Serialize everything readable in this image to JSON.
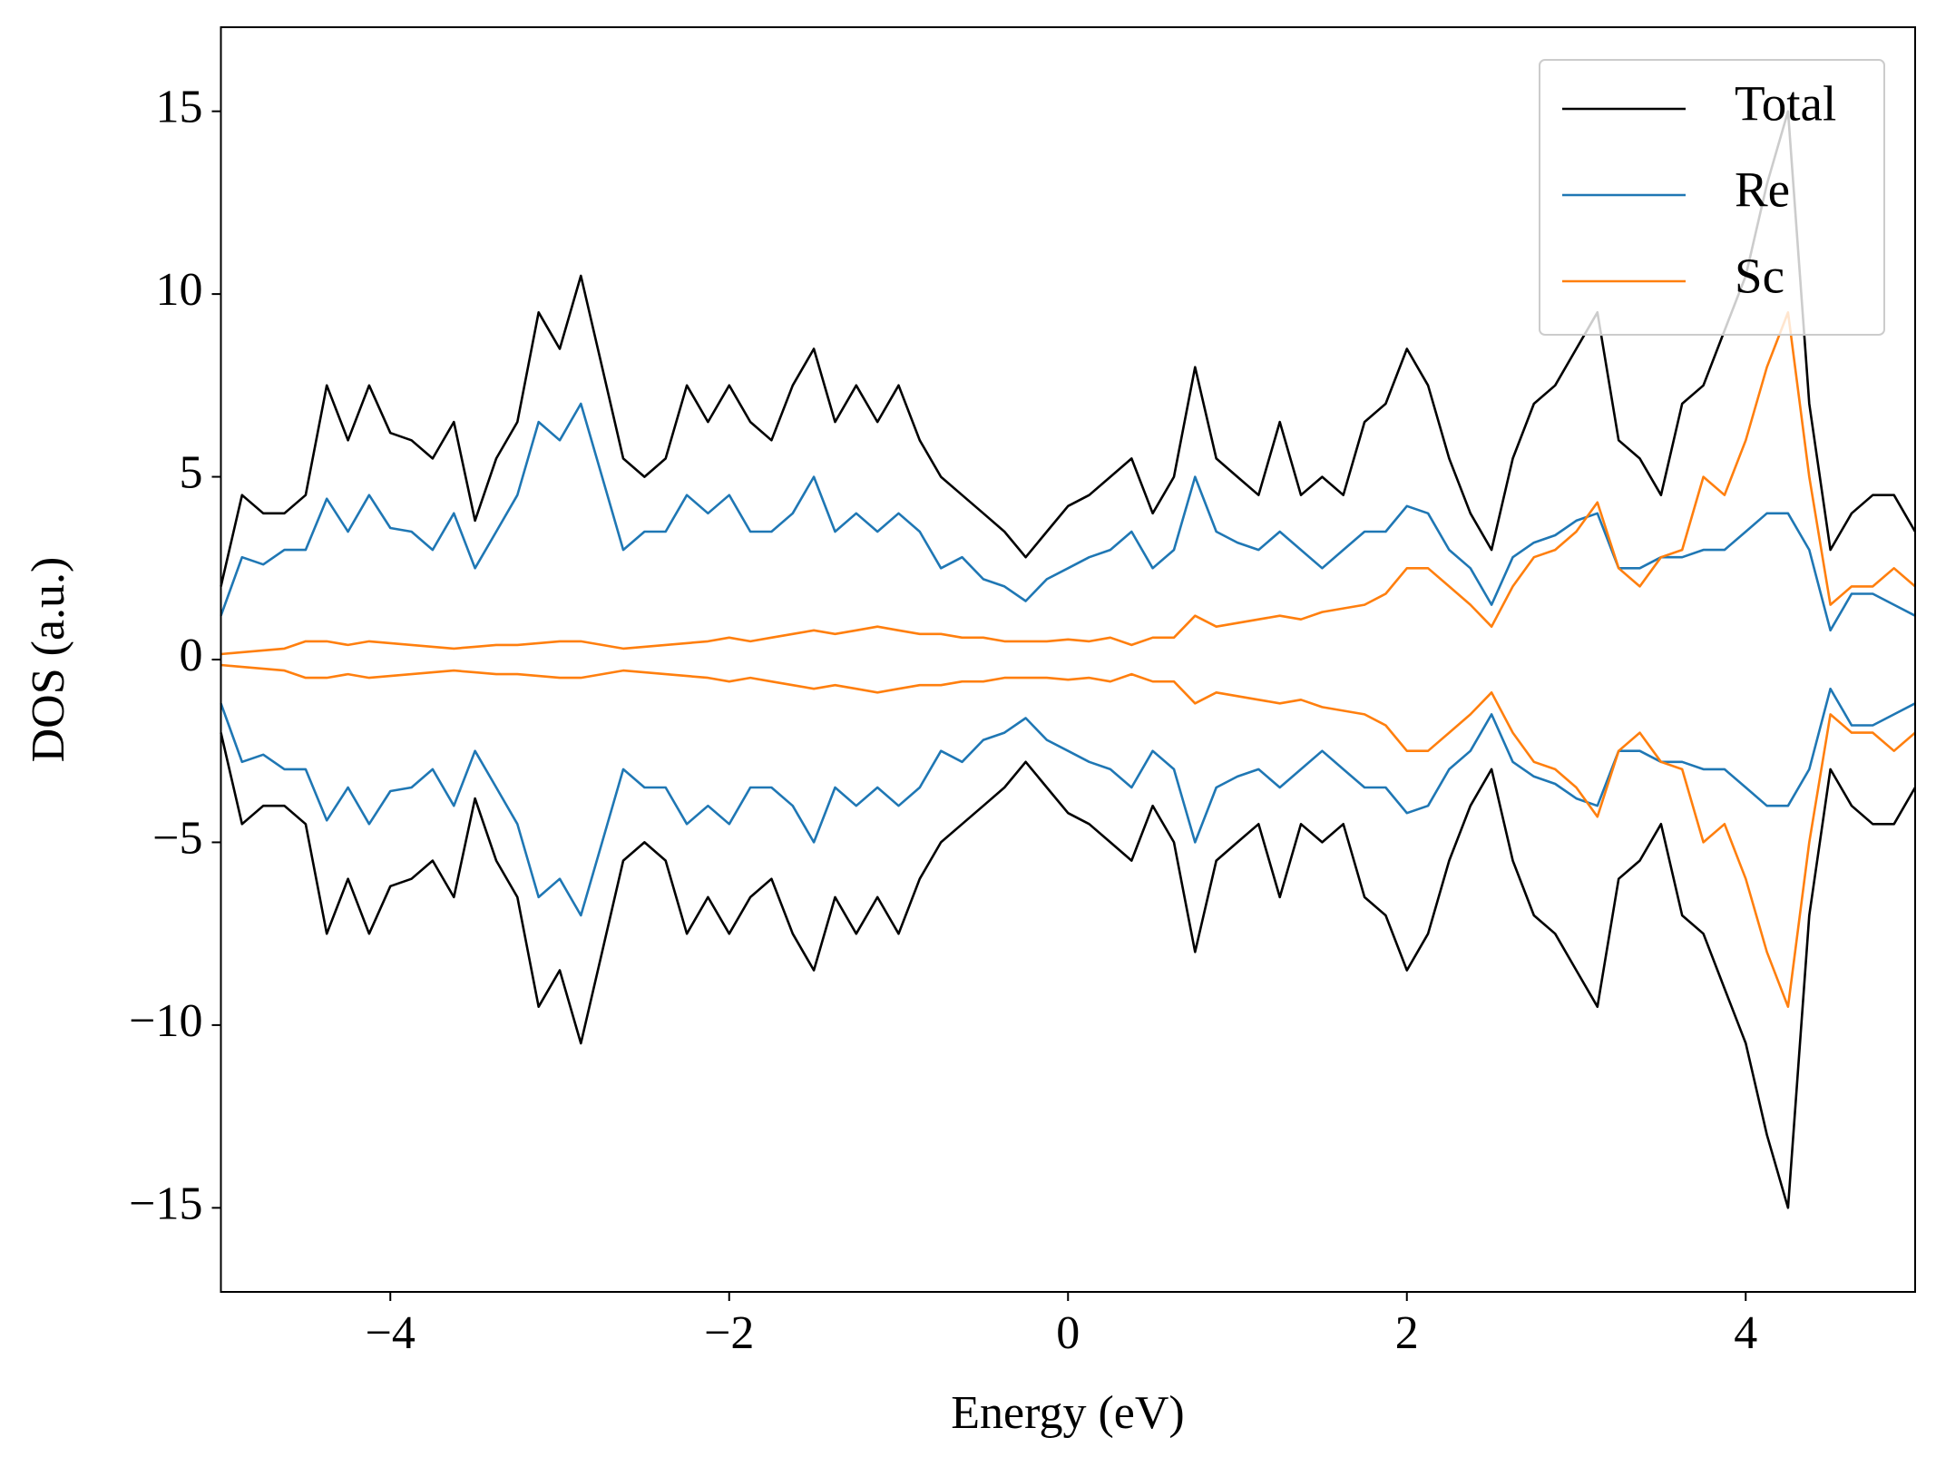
{
  "chart_data": {
    "type": "line",
    "xlabel": "Energy (eV)",
    "ylabel": "DOS (a.u.)",
    "x": [
      -5,
      -4.875,
      -4.75,
      -4.625,
      -4.5,
      -4.375,
      -4.25,
      -4.125,
      -4,
      -3.875,
      -3.75,
      -3.625,
      -3.5,
      -3.375,
      -3.25,
      -3.125,
      -3,
      -2.875,
      -2.75,
      -2.625,
      -2.5,
      -2.375,
      -2.25,
      -2.125,
      -2,
      -1.875,
      -1.75,
      -1.625,
      -1.5,
      -1.375,
      -1.25,
      -1.125,
      -1,
      -0.875,
      -0.75,
      -0.625,
      -0.5,
      -0.375,
      -0.25,
      -0.125,
      0,
      0.125,
      0.25,
      0.375,
      0.5,
      0.625,
      0.75,
      0.875,
      1,
      1.125,
      1.25,
      1.375,
      1.5,
      1.625,
      1.75,
      1.875,
      2,
      2.125,
      2.25,
      2.375,
      2.5,
      2.625,
      2.75,
      2.875,
      3,
      3.125,
      3.25,
      3.375,
      3.5,
      3.625,
      3.75,
      3.875,
      4,
      4.125,
      4.25,
      4.375,
      4.5,
      4.625,
      4.75,
      4.875,
      5
    ],
    "series": [
      {
        "name": "Total",
        "color": "#000000",
        "values": [
          2.0,
          4.5,
          4.0,
          4.0,
          4.5,
          7.5,
          6.0,
          7.5,
          6.2,
          6.0,
          5.5,
          6.5,
          3.8,
          5.5,
          6.5,
          9.5,
          8.5,
          10.5,
          8.0,
          5.5,
          5.0,
          5.5,
          7.5,
          6.5,
          7.5,
          6.5,
          6.0,
          7.5,
          8.5,
          6.5,
          7.5,
          6.5,
          7.5,
          6.0,
          5.0,
          4.5,
          4.0,
          3.5,
          2.8,
          3.5,
          4.2,
          4.5,
          5.0,
          5.5,
          4.0,
          5.0,
          8.0,
          5.5,
          5.0,
          4.5,
          6.5,
          4.5,
          5.0,
          4.5,
          6.5,
          7.0,
          8.5,
          7.5,
          5.5,
          4.0,
          3.0,
          5.5,
          7.0,
          7.5,
          8.5,
          9.5,
          6.0,
          5.5,
          4.5,
          7.0,
          7.5,
          9.0,
          10.5,
          13.0,
          15.0,
          7.0,
          3.0,
          4.0,
          4.5,
          4.5,
          3.5
        ]
      },
      {
        "name": "Re",
        "color": "#1f77b4",
        "values": [
          1.2,
          2.8,
          2.6,
          3.0,
          3.0,
          4.4,
          3.5,
          4.5,
          3.6,
          3.5,
          3.0,
          4.0,
          2.5,
          3.5,
          4.5,
          6.5,
          6.0,
          7.0,
          5.0,
          3.0,
          3.5,
          3.5,
          4.5,
          4.0,
          4.5,
          3.5,
          3.5,
          4.0,
          5.0,
          3.5,
          4.0,
          3.5,
          4.0,
          3.5,
          2.5,
          2.8,
          2.2,
          2.0,
          1.6,
          2.2,
          2.5,
          2.8,
          3.0,
          3.5,
          2.5,
          3.0,
          5.0,
          3.5,
          3.2,
          3.0,
          3.5,
          3.0,
          2.5,
          3.0,
          3.5,
          3.5,
          4.2,
          4.0,
          3.0,
          2.5,
          1.5,
          2.8,
          3.2,
          3.4,
          3.8,
          4.0,
          2.5,
          2.5,
          2.8,
          2.8,
          3.0,
          3.0,
          3.5,
          4.0,
          4.0,
          3.0,
          0.8,
          1.8,
          1.8,
          1.5,
          1.2
        ]
      },
      {
        "name": "Sc",
        "color": "#ff7f0e",
        "values": [
          0.15,
          0.2,
          0.25,
          0.3,
          0.5,
          0.5,
          0.4,
          0.5,
          0.45,
          0.4,
          0.35,
          0.3,
          0.35,
          0.4,
          0.4,
          0.45,
          0.5,
          0.5,
          0.4,
          0.3,
          0.35,
          0.4,
          0.45,
          0.5,
          0.6,
          0.5,
          0.6,
          0.7,
          0.8,
          0.7,
          0.8,
          0.9,
          0.8,
          0.7,
          0.7,
          0.6,
          0.6,
          0.5,
          0.5,
          0.5,
          0.55,
          0.5,
          0.6,
          0.4,
          0.6,
          0.6,
          1.2,
          0.9,
          1.0,
          1.1,
          1.2,
          1.1,
          1.3,
          1.4,
          1.5,
          1.8,
          2.5,
          2.5,
          2.0,
          1.5,
          0.9,
          2.0,
          2.8,
          3.0,
          3.5,
          4.3,
          2.5,
          2.0,
          2.8,
          3.0,
          5.0,
          4.5,
          6.0,
          8.0,
          9.5,
          5.0,
          1.5,
          2.0,
          2.0,
          2.5,
          2.0
        ]
      },
      {
        "color": "#000000",
        "values": [
          -2.0,
          -4.5,
          -4.0,
          -4.0,
          -4.5,
          -7.5,
          -6.0,
          -7.5,
          -6.2,
          -6.0,
          -5.5,
          -6.5,
          -3.8,
          -5.5,
          -6.5,
          -9.5,
          -8.5,
          -10.5,
          -8.0,
          -5.5,
          -5.0,
          -5.5,
          -7.5,
          -6.5,
          -7.5,
          -6.5,
          -6.0,
          -7.5,
          -8.5,
          -6.5,
          -7.5,
          -6.5,
          -7.5,
          -6.0,
          -5.0,
          -4.5,
          -4.0,
          -3.5,
          -2.8,
          -3.5,
          -4.2,
          -4.5,
          -5.0,
          -5.5,
          -4.0,
          -5.0,
          -8.0,
          -5.5,
          -5.0,
          -4.5,
          -6.5,
          -4.5,
          -5.0,
          -4.5,
          -6.5,
          -7.0,
          -8.5,
          -7.5,
          -5.5,
          -4.0,
          -3.0,
          -5.5,
          -7.0,
          -7.5,
          -8.5,
          -9.5,
          -6.0,
          -5.5,
          -4.5,
          -7.0,
          -7.5,
          -9.0,
          -10.5,
          -13.0,
          -15.0,
          -7.0,
          -3.0,
          -4.0,
          -4.5,
          -4.5,
          -3.5
        ]
      },
      {
        "color": "#1f77b4",
        "values": [
          -1.2,
          -2.8,
          -2.6,
          -3.0,
          -3.0,
          -4.4,
          -3.5,
          -4.5,
          -3.6,
          -3.5,
          -3.0,
          -4.0,
          -2.5,
          -3.5,
          -4.5,
          -6.5,
          -6.0,
          -7.0,
          -5.0,
          -3.0,
          -3.5,
          -3.5,
          -4.5,
          -4.0,
          -4.5,
          -3.5,
          -3.5,
          -4.0,
          -5.0,
          -3.5,
          -4.0,
          -3.5,
          -4.0,
          -3.5,
          -2.5,
          -2.8,
          -2.2,
          -2.0,
          -1.6,
          -2.2,
          -2.5,
          -2.8,
          -3.0,
          -3.5,
          -2.5,
          -3.0,
          -5.0,
          -3.5,
          -3.2,
          -3.0,
          -3.5,
          -3.0,
          -2.5,
          -3.0,
          -3.5,
          -3.5,
          -4.2,
          -4.0,
          -3.0,
          -2.5,
          -1.5,
          -2.8,
          -3.2,
          -3.4,
          -3.8,
          -4.0,
          -2.5,
          -2.5,
          -2.8,
          -2.8,
          -3.0,
          -3.0,
          -3.5,
          -4.0,
          -4.0,
          -3.0,
          -0.8,
          -1.8,
          -1.8,
          -1.5,
          -1.2
        ]
      },
      {
        "color": "#ff7f0e",
        "values": [
          -0.15,
          -0.2,
          -0.25,
          -0.3,
          -0.5,
          -0.5,
          -0.4,
          -0.5,
          -0.45,
          -0.4,
          -0.35,
          -0.3,
          -0.35,
          -0.4,
          -0.4,
          -0.45,
          -0.5,
          -0.5,
          -0.4,
          -0.3,
          -0.35,
          -0.4,
          -0.45,
          -0.5,
          -0.6,
          -0.5,
          -0.6,
          -0.7,
          -0.8,
          -0.7,
          -0.8,
          -0.9,
          -0.8,
          -0.7,
          -0.7,
          -0.6,
          -0.6,
          -0.5,
          -0.5,
          -0.5,
          -0.55,
          -0.5,
          -0.6,
          -0.4,
          -0.6,
          -0.6,
          -1.2,
          -0.9,
          -1.0,
          -1.1,
          -1.2,
          -1.1,
          -1.3,
          -1.4,
          -1.5,
          -1.8,
          -2.5,
          -2.5,
          -2.0,
          -1.5,
          -0.9,
          -2.0,
          -2.8,
          -3.0,
          -3.5,
          -4.3,
          -2.5,
          -2.0,
          -2.8,
          -3.0,
          -5.0,
          -4.5,
          -6.0,
          -8.0,
          -9.5,
          -5.0,
          -1.5,
          -2.0,
          -2.0,
          -2.5,
          -2.0
        ]
      }
    ],
    "xlim": [
      -5,
      5
    ],
    "xticks": [
      {
        "value": -4,
        "label": "−4"
      },
      {
        "value": -2,
        "label": "−2"
      },
      0,
      2,
      4
    ],
    "ylim": [
      -17.3,
      17.3
    ],
    "yticks": [
      {
        "value": -15,
        "label": "−15"
      },
      {
        "value": -10,
        "label": "−10"
      },
      {
        "value": -5,
        "label": "−5"
      },
      0,
      5,
      10,
      15
    ],
    "legend": "upper right"
  }
}
